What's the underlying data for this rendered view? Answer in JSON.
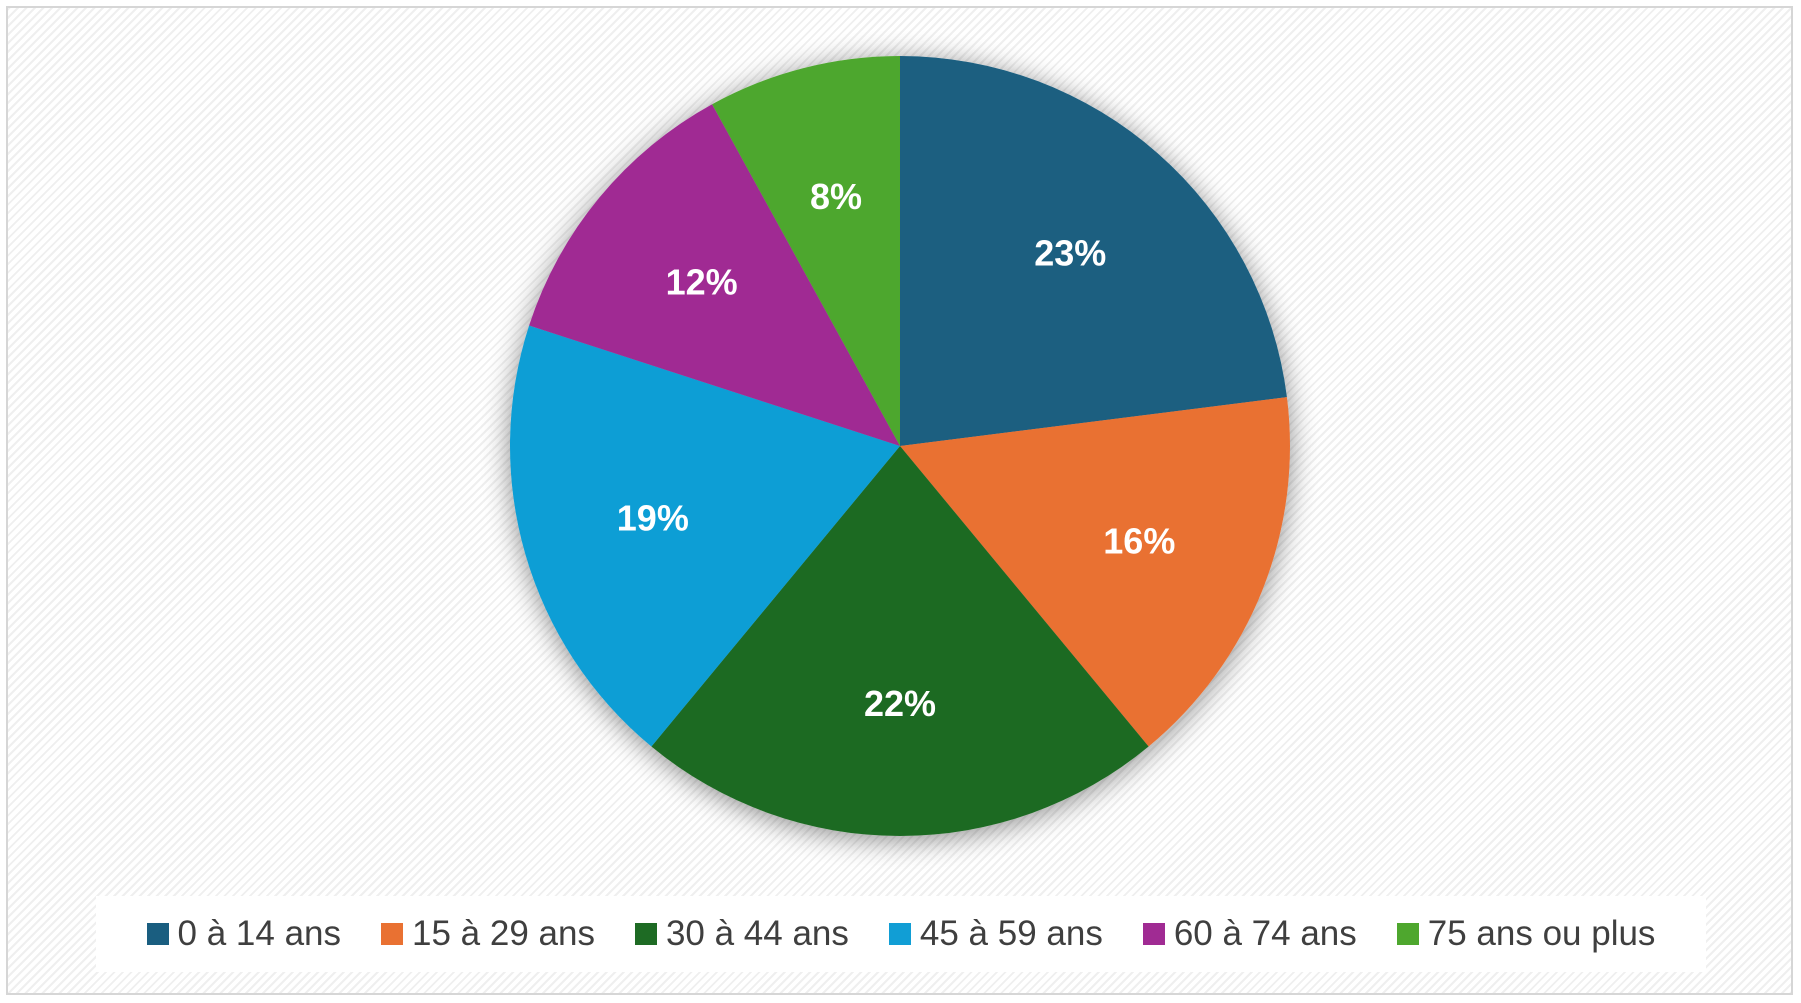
{
  "chart_data": {
    "type": "pie",
    "title": "",
    "categories": [
      "0 à 14 ans",
      "15 à 29 ans",
      "30 à 44 ans",
      "45 à 59 ans",
      "60 à 74 ans",
      "75 ans ou plus"
    ],
    "values": [
      23,
      16,
      22,
      19,
      12,
      8
    ],
    "data_labels": [
      "23%",
      "16%",
      "22%",
      "19%",
      "12%",
      "8%"
    ],
    "colors": [
      "#1a5e80",
      "#e97132",
      "#1e6b24",
      "#119ed5",
      "#a02b93",
      "#4ea72e"
    ],
    "start_angle": "12 o'clock",
    "direction": "clockwise",
    "legend_position": "bottom"
  }
}
